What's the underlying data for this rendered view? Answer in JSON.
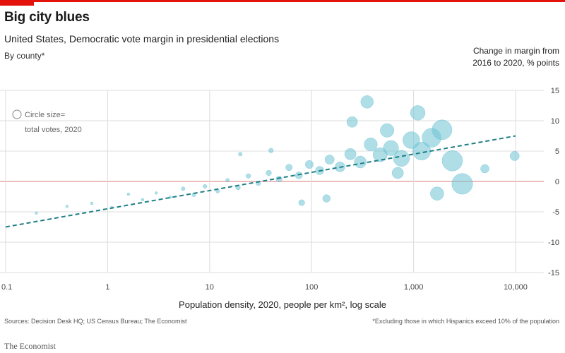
{
  "header": {
    "title": "Big city blues",
    "subtitle": "United States, Democratic vote margin in presidential elections",
    "note": "By county*",
    "y_label_line1": "Change in margin from",
    "y_label_line2": "2016 to 2020, % points"
  },
  "footer": {
    "source": "Sources: Decision Desk HQ; US Census Bureau; The Economist",
    "footnote": "*Excluding those in which Hispanics exceed 10% of the population",
    "brand": "The Economist"
  },
  "colors": {
    "brand_red": "#e3120b",
    "bubble": "#6ec3d4",
    "trend_line": "#1f7f86",
    "grid": "#dcdcdc",
    "zero_line": "#e8a5a5"
  },
  "chart_data": {
    "type": "scatter",
    "title": "Big city blues",
    "subtitle": "United States, Democratic vote margin in presidential elections",
    "xlabel": "Population density, 2020, people per km², log scale",
    "ylabel": "Change in margin from 2016 to 2020, % points",
    "x_scale": "log",
    "xlim": [
      0.1,
      10000
    ],
    "ylim": [
      -15,
      15
    ],
    "x_ticks": [
      0.1,
      1,
      10,
      100,
      1000,
      10000
    ],
    "x_tick_labels": [
      "0.1",
      "1",
      "10",
      "100",
      "1,000",
      "10,000"
    ],
    "y_ticks": [
      15,
      10,
      5,
      0,
      -5,
      -10,
      -15
    ],
    "y_tick_labels": [
      "15",
      "10",
      "5",
      "0",
      "-5",
      "-10",
      "-15"
    ],
    "legend": {
      "label_line1": "Circle size=",
      "label_line2": "total votes, 2020",
      "placement": "top-left"
    },
    "trend_line": {
      "x": [
        0.1,
        10000
      ],
      "y": [
        -7.5,
        7.5
      ],
      "style": "dashed"
    },
    "series": [
      {
        "points": [
          {
            "x": 0.2,
            "y": -5.2,
            "votes": 1
          },
          {
            "x": 0.4,
            "y": -4.1,
            "votes": 1
          },
          {
            "x": 0.7,
            "y": -3.6,
            "votes": 1
          },
          {
            "x": 1.1,
            "y": -4.3,
            "votes": 1
          },
          {
            "x": 1.6,
            "y": -2.1,
            "votes": 1
          },
          {
            "x": 2.2,
            "y": -3.0,
            "votes": 1
          },
          {
            "x": 3.0,
            "y": -1.9,
            "votes": 1
          },
          {
            "x": 4.1,
            "y": -2.6,
            "votes": 1
          },
          {
            "x": 5.5,
            "y": -1.2,
            "votes": 2
          },
          {
            "x": 7.0,
            "y": -2.2,
            "votes": 2
          },
          {
            "x": 9.0,
            "y": -0.8,
            "votes": 2
          },
          {
            "x": 12,
            "y": -1.6,
            "votes": 2
          },
          {
            "x": 15,
            "y": 0.2,
            "votes": 2
          },
          {
            "x": 19,
            "y": -1.0,
            "votes": 3
          },
          {
            "x": 24,
            "y": 0.9,
            "votes": 3
          },
          {
            "x": 30,
            "y": -0.3,
            "votes": 3
          },
          {
            "x": 38,
            "y": 1.4,
            "votes": 4
          },
          {
            "x": 48,
            "y": 0.4,
            "votes": 5
          },
          {
            "x": 60,
            "y": 2.3,
            "votes": 6
          },
          {
            "x": 75,
            "y": 1.0,
            "votes": 7
          },
          {
            "x": 95,
            "y": 2.8,
            "votes": 9
          },
          {
            "x": 120,
            "y": 1.8,
            "votes": 10
          },
          {
            "x": 150,
            "y": 3.6,
            "votes": 12
          },
          {
            "x": 190,
            "y": 2.4,
            "votes": 14
          },
          {
            "x": 240,
            "y": 4.5,
            "votes": 18
          },
          {
            "x": 300,
            "y": 3.2,
            "votes": 20
          },
          {
            "x": 380,
            "y": 6.1,
            "votes": 24
          },
          {
            "x": 470,
            "y": 4.4,
            "votes": 28
          },
          {
            "x": 600,
            "y": 5.5,
            "votes": 32
          },
          {
            "x": 760,
            "y": 3.8,
            "votes": 36
          },
          {
            "x": 950,
            "y": 6.8,
            "votes": 40
          },
          {
            "x": 1200,
            "y": 5.0,
            "votes": 45
          },
          {
            "x": 1500,
            "y": 7.2,
            "votes": 50
          },
          {
            "x": 1900,
            "y": 8.5,
            "votes": 55
          },
          {
            "x": 2400,
            "y": 3.4,
            "votes": 58
          },
          {
            "x": 3000,
            "y": -0.4,
            "votes": 60
          },
          {
            "x": 350,
            "y": 13.1,
            "votes": 22
          },
          {
            "x": 1100,
            "y": 11.3,
            "votes": 30
          },
          {
            "x": 250,
            "y": 9.8,
            "votes": 16
          },
          {
            "x": 700,
            "y": 1.4,
            "votes": 18
          },
          {
            "x": 1700,
            "y": -2.0,
            "votes": 25
          },
          {
            "x": 9800,
            "y": 4.2,
            "votes": 12
          },
          {
            "x": 5000,
            "y": 2.1,
            "votes": 10
          },
          {
            "x": 80,
            "y": -3.5,
            "votes": 5
          },
          {
            "x": 40,
            "y": 5.1,
            "votes": 3
          },
          {
            "x": 20,
            "y": 4.5,
            "votes": 2
          },
          {
            "x": 140,
            "y": -2.8,
            "votes": 8
          },
          {
            "x": 550,
            "y": 8.4,
            "votes": 26
          }
        ]
      }
    ]
  }
}
